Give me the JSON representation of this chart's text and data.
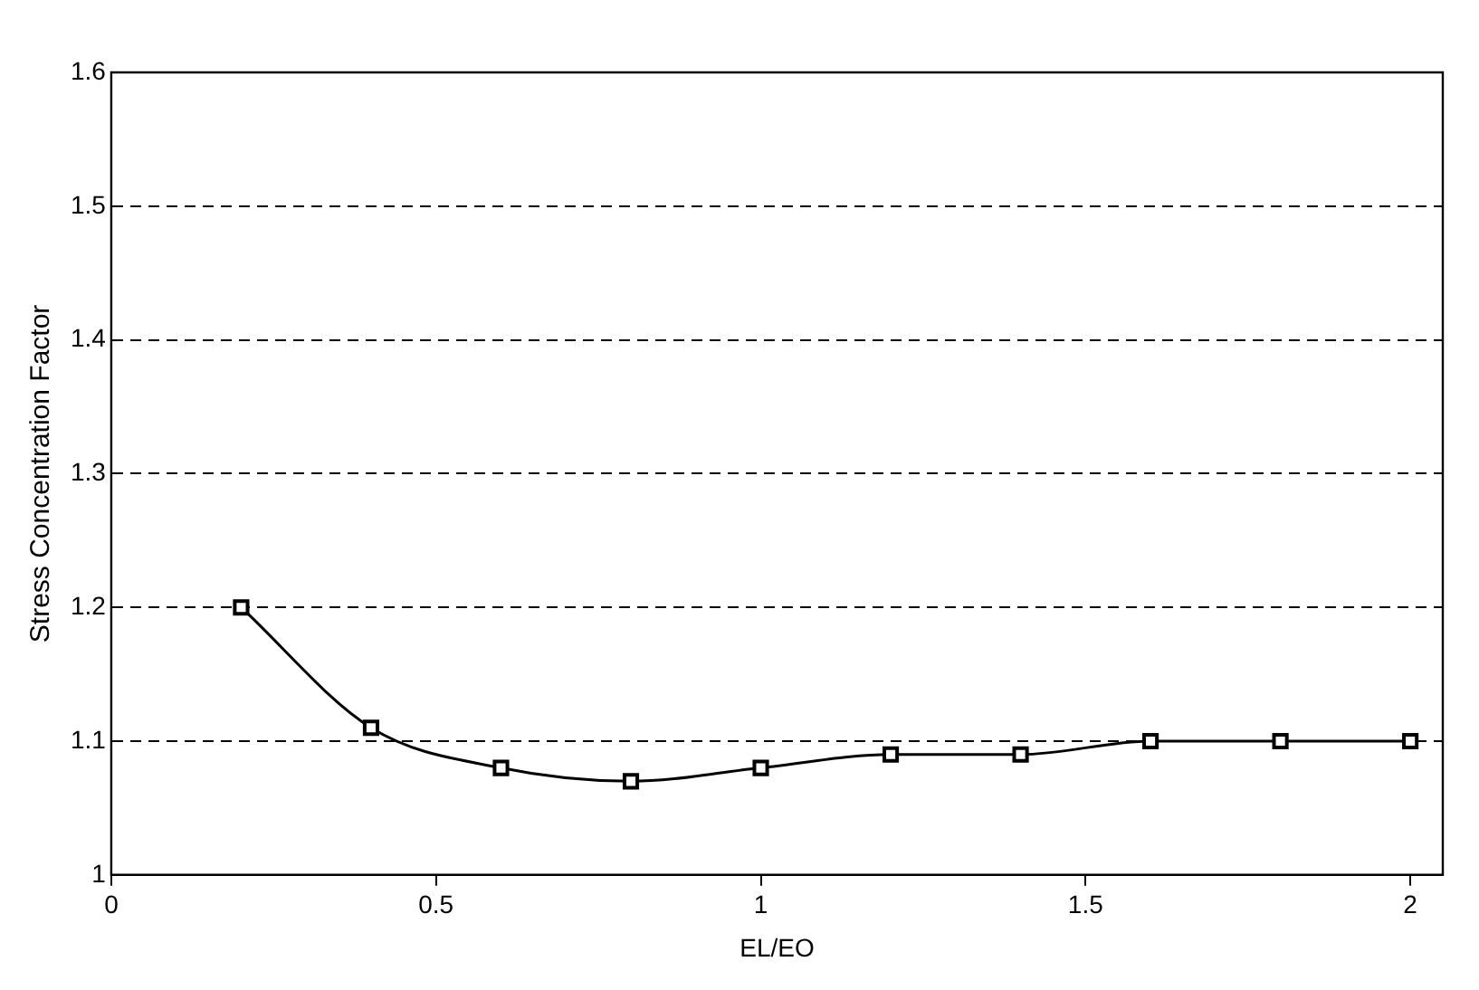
{
  "chart_data": {
    "type": "line",
    "xlabel": "EL/EO",
    "ylabel": "Stress Concentration Factor",
    "x": [
      0.2,
      0.4,
      0.6,
      0.8,
      1.0,
      1.2,
      1.4,
      1.6,
      1.8,
      2.0
    ],
    "series": [
      {
        "color": "#000000",
        "values": [
          1.2,
          1.11,
          1.08,
          1.07,
          1.08,
          1.09,
          1.09,
          1.1,
          1.1,
          1.1
        ]
      }
    ],
    "xlim": [
      0,
      2.05
    ],
    "xticks": [
      0,
      0.5,
      1,
      1.5,
      2
    ],
    "ylim": [
      1,
      1.6
    ],
    "yticks": [
      1,
      1.1,
      1.2,
      1.3,
      1.4,
      1.5,
      1.6
    ],
    "grid": "y",
    "marker": "square",
    "line_style": "solid"
  }
}
